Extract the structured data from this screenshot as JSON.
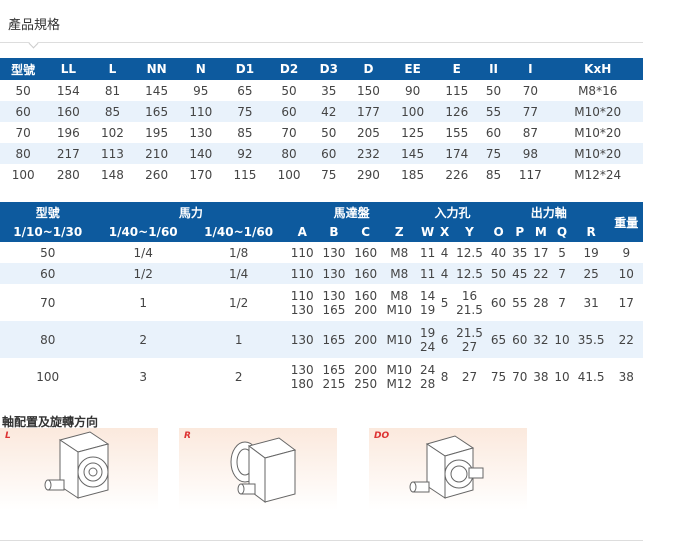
{
  "title": "產品規格",
  "table1": {
    "headers": [
      "型號",
      "LL",
      "L",
      "NN",
      "N",
      "D1",
      "D2",
      "D3",
      "D",
      "EE",
      "E",
      "II",
      "I",
      "KxH"
    ],
    "rows": [
      [
        "50",
        "154",
        "81",
        "145",
        "95",
        "65",
        "50",
        "35",
        "150",
        "90",
        "115",
        "50",
        "70",
        "M8*16"
      ],
      [
        "60",
        "160",
        "85",
        "165",
        "110",
        "75",
        "60",
        "42",
        "177",
        "100",
        "126",
        "55",
        "77",
        "M10*20"
      ],
      [
        "70",
        "196",
        "102",
        "195",
        "130",
        "85",
        "70",
        "50",
        "205",
        "125",
        "155",
        "60",
        "87",
        "M10*20"
      ],
      [
        "80",
        "217",
        "113",
        "210",
        "140",
        "92",
        "80",
        "60",
        "232",
        "145",
        "174",
        "75",
        "98",
        "M10*20"
      ],
      [
        "100",
        "280",
        "148",
        "260",
        "170",
        "115",
        "100",
        "75",
        "290",
        "185",
        "226",
        "85",
        "117",
        "M12*24"
      ]
    ]
  },
  "table2": {
    "group_headers": {
      "model": "型號",
      "hp": "馬力",
      "motor": "馬達盤",
      "input": "入力孔",
      "output": "出力軸",
      "weight": "重量"
    },
    "sub_headers": [
      "1/10~1/30",
      "1/40~1/60",
      "1/40~1/60",
      "A",
      "B",
      "C",
      "Z",
      "W",
      "X",
      "Y",
      "O",
      "P",
      "M",
      "Q",
      "R"
    ],
    "rows": [
      [
        "50",
        "1/4",
        "1/8",
        "110",
        "130",
        "160",
        "M8",
        "11",
        "4",
        "12.5",
        "40",
        "35",
        "17",
        "5",
        "19",
        "9"
      ],
      [
        "60",
        "1/2",
        "1/4",
        "110",
        "130",
        "160",
        "M8",
        "11",
        "4",
        "12.5",
        "50",
        "45",
        "22",
        "7",
        "25",
        "10"
      ],
      [
        "70",
        "1",
        "1/2",
        "110\n130",
        "130\n165",
        "160\n200",
        "M8\nM10",
        "14\n19",
        "5",
        "16\n21.5",
        "60",
        "55",
        "28",
        "7",
        "31",
        "17"
      ],
      [
        "80",
        "2",
        "1",
        "130",
        "165",
        "200",
        "M10",
        "19\n24",
        "6",
        "21.5\n27",
        "65",
        "60",
        "32",
        "10",
        "35.5",
        "22"
      ],
      [
        "100",
        "3",
        "2",
        "130\n180",
        "165\n215",
        "200\n250",
        "M10\nM12",
        "24\n28",
        "8",
        "27",
        "75",
        "70",
        "38",
        "10",
        "41.5",
        "38"
      ]
    ]
  },
  "section2_title": "軸配置及旋轉方向",
  "panels": [
    {
      "label": "L"
    },
    {
      "label": "R"
    },
    {
      "label": "DO"
    }
  ]
}
